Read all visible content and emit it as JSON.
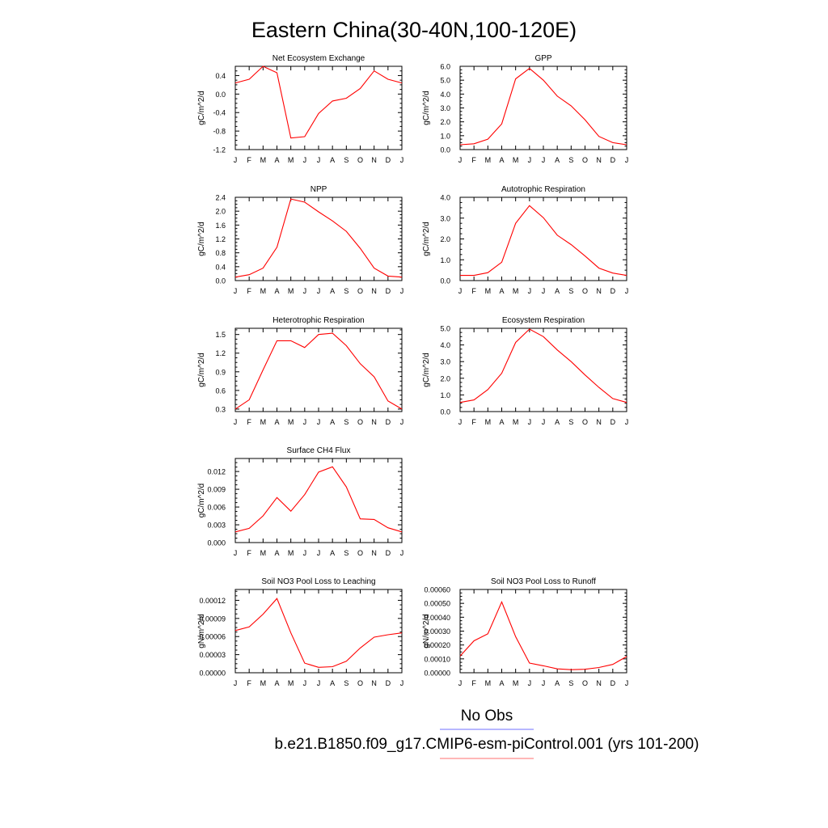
{
  "title": "Eastern China(30-40N,100-120E)",
  "legend": {
    "obs_label": "No Obs",
    "obs_color": "#6f6fff",
    "model_label": "b.e21.B1850.f09_g17.CMIP6-esm-piControl.001 (yrs 101-200)",
    "model_color": "#ff6f6f"
  },
  "line_color": "#ff0000",
  "months": [
    "J",
    "F",
    "M",
    "A",
    "M",
    "J",
    "J",
    "A",
    "S",
    "O",
    "N",
    "D",
    "J"
  ],
  "chart_data": [
    {
      "type": "line",
      "title": "Net Ecosystem Exchange",
      "ylabel": "gC/m^2/d",
      "ylim": [
        -1.2,
        0.6
      ],
      "yticks": [
        -1.2,
        -0.8,
        -0.4,
        0.0,
        0.4
      ],
      "ytick_labels": [
        "-1.2",
        "-0.8",
        "-0.4",
        "0.0",
        "0.4"
      ],
      "x": [
        "J",
        "F",
        "M",
        "A",
        "M",
        "J",
        "J",
        "A",
        "S",
        "O",
        "N",
        "D",
        "J"
      ],
      "values": [
        0.24,
        0.32,
        0.6,
        0.46,
        -0.95,
        -0.92,
        -0.42,
        -0.15,
        -0.09,
        0.12,
        0.5,
        0.32,
        0.24
      ]
    },
    {
      "type": "line",
      "title": "GPP",
      "ylabel": "gC/m^2/d",
      "ylim": [
        0.0,
        6.0
      ],
      "yticks": [
        0.0,
        1.0,
        2.0,
        3.0,
        4.0,
        5.0,
        6.0
      ],
      "ytick_labels": [
        "0.0",
        "1.0",
        "2.0",
        "3.0",
        "4.0",
        "5.0",
        "6.0"
      ],
      "x": [
        "J",
        "F",
        "M",
        "A",
        "M",
        "J",
        "J",
        "A",
        "S",
        "O",
        "N",
        "D",
        "J"
      ],
      "values": [
        0.35,
        0.42,
        0.75,
        1.85,
        5.1,
        5.85,
        5.0,
        3.85,
        3.15,
        2.15,
        0.95,
        0.5,
        0.35
      ]
    },
    {
      "type": "line",
      "title": "NPP",
      "ylabel": "gC/m^2/d",
      "ylim": [
        0.0,
        2.4
      ],
      "yticks": [
        0.0,
        0.4,
        0.8,
        1.2,
        1.6,
        2.0,
        2.4
      ],
      "ytick_labels": [
        "0.0",
        "0.4",
        "0.8",
        "1.2",
        "1.6",
        "2.0",
        "2.4"
      ],
      "x": [
        "J",
        "F",
        "M",
        "A",
        "M",
        "J",
        "J",
        "A",
        "S",
        "O",
        "N",
        "D",
        "J"
      ],
      "values": [
        0.1,
        0.17,
        0.36,
        0.96,
        2.35,
        2.26,
        1.98,
        1.72,
        1.42,
        0.93,
        0.36,
        0.13,
        0.1
      ]
    },
    {
      "type": "line",
      "title": "Autotrophic Respiration",
      "ylabel": "gC/m^2/d",
      "ylim": [
        0.0,
        4.0
      ],
      "yticks": [
        0.0,
        1.0,
        2.0,
        3.0,
        4.0
      ],
      "ytick_labels": [
        "0.0",
        "1.0",
        "2.0",
        "3.0",
        "4.0"
      ],
      "x": [
        "J",
        "F",
        "M",
        "A",
        "M",
        "J",
        "J",
        "A",
        "S",
        "O",
        "N",
        "D",
        "J"
      ],
      "values": [
        0.25,
        0.25,
        0.38,
        0.88,
        2.75,
        3.6,
        3.02,
        2.18,
        1.73,
        1.18,
        0.6,
        0.36,
        0.25
      ]
    },
    {
      "type": "line",
      "title": "Heterotrophic Respiration",
      "ylabel": "gC/m^2/d",
      "ylim": [
        0.26,
        1.6
      ],
      "yticks": [
        0.3,
        0.6,
        0.9,
        1.2,
        1.5
      ],
      "ytick_labels": [
        "0.3",
        "0.6",
        "0.9",
        "1.2",
        "1.5"
      ],
      "x": [
        "J",
        "F",
        "M",
        "A",
        "M",
        "J",
        "J",
        "A",
        "S",
        "O",
        "N",
        "D",
        "J"
      ],
      "values": [
        0.3,
        0.45,
        0.93,
        1.4,
        1.4,
        1.29,
        1.5,
        1.52,
        1.32,
        1.03,
        0.82,
        0.43,
        0.3
      ]
    },
    {
      "type": "line",
      "title": "Ecosystem Respiration",
      "ylabel": "gC/m^2/d",
      "ylim": [
        0.0,
        5.0
      ],
      "yticks": [
        0.0,
        1.0,
        2.0,
        3.0,
        4.0,
        5.0
      ],
      "ytick_labels": [
        "0.0",
        "1.0",
        "2.0",
        "3.0",
        "4.0",
        "5.0"
      ],
      "x": [
        "J",
        "F",
        "M",
        "A",
        "M",
        "J",
        "J",
        "A",
        "S",
        "O",
        "N",
        "D",
        "J"
      ],
      "values": [
        0.55,
        0.7,
        1.32,
        2.3,
        4.15,
        4.95,
        4.5,
        3.7,
        3.0,
        2.2,
        1.45,
        0.78,
        0.55
      ]
    },
    {
      "type": "line",
      "title": "Surface CH4 Flux",
      "ylabel": "gC/m^2/d",
      "ylim": [
        0.0,
        0.0142
      ],
      "yticks": [
        0.0,
        0.003,
        0.006,
        0.009,
        0.012
      ],
      "ytick_labels": [
        "0.000",
        "0.003",
        "0.006",
        "0.009",
        "0.012"
      ],
      "x": [
        "J",
        "F",
        "M",
        "A",
        "M",
        "J",
        "J",
        "A",
        "S",
        "O",
        "N",
        "D",
        "J"
      ],
      "values": [
        0.0018,
        0.0024,
        0.0045,
        0.0076,
        0.0053,
        0.0081,
        0.0119,
        0.0128,
        0.0094,
        0.004,
        0.0039,
        0.0025,
        0.0018
      ]
    },
    {
      "type": "line",
      "title": "Soil NO3 Pool Loss to Leaching",
      "ylabel": "gN/m^2/d",
      "ylim": [
        0.0,
        0.000138
      ],
      "yticks": [
        0.0,
        3e-05,
        6e-05,
        9e-05,
        0.00012
      ],
      "ytick_labels": [
        "0.00000",
        "0.00003",
        "0.00006",
        "0.00009",
        "0.00012"
      ],
      "x": [
        "J",
        "F",
        "M",
        "A",
        "M",
        "J",
        "J",
        "A",
        "S",
        "O",
        "N",
        "D",
        "J"
      ],
      "values": [
        7e-05,
        7.6e-05,
        9.7e-05,
        0.000123,
        6.6e-05,
        1.6e-05,
        9e-06,
        1e-05,
        1.9e-05,
        4.1e-05,
        5.9e-05,
        6.3e-05,
        6.6e-05
      ]
    },
    {
      "type": "line",
      "title": "Soil NO3 Pool Loss to Runoff",
      "ylabel": "gN/m^2/d",
      "ylim": [
        0.0,
        0.0006
      ],
      "yticks": [
        0.0,
        0.0001,
        0.0002,
        0.0003,
        0.0004,
        0.0005,
        0.0006
      ],
      "ytick_labels": [
        "0.00000",
        "0.00010",
        "0.00020",
        "0.00030",
        "0.00040",
        "0.00050",
        "0.00060"
      ],
      "x": [
        "J",
        "F",
        "M",
        "A",
        "M",
        "J",
        "J",
        "A",
        "S",
        "O",
        "N",
        "D",
        "J"
      ],
      "values": [
        0.00012,
        0.00023,
        0.00028,
        0.00051,
        0.00026,
        7e-05,
        5e-05,
        2.8e-05,
        2.2e-05,
        2.5e-05,
        3.8e-05,
        6e-05,
        0.000117
      ]
    }
  ]
}
